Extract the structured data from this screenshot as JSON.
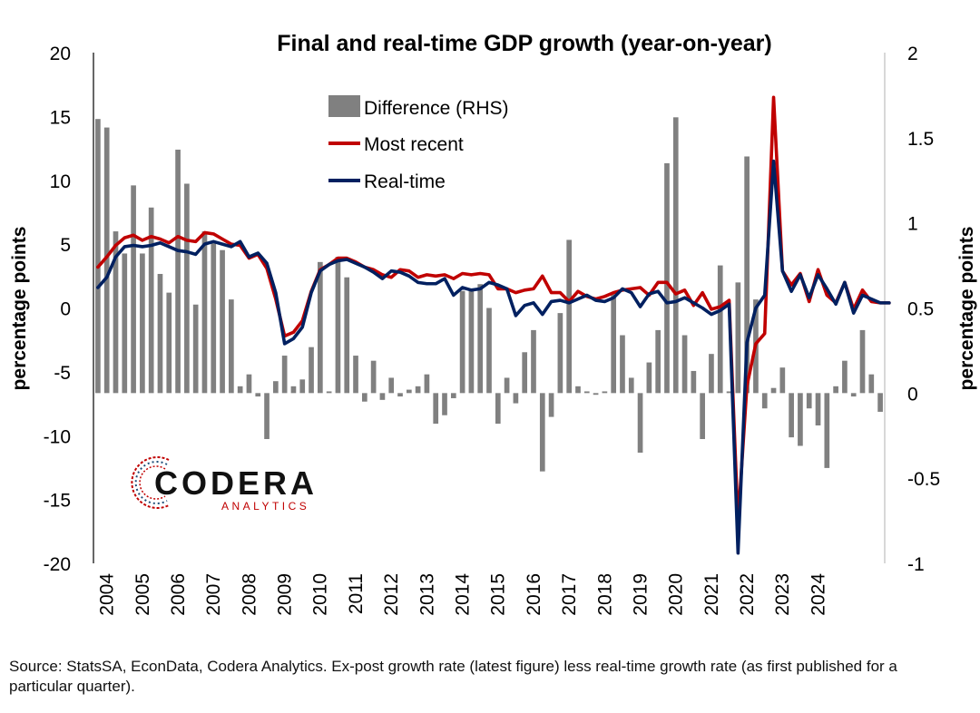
{
  "chart_data": {
    "type": "bar",
    "title": "Final and real-time GDP growth (year-on-year)",
    "ylabel_left": "percentage points",
    "ylabel_right": "percentage points",
    "ylim_left": [
      -20,
      20
    ],
    "ylim_right": [
      -1,
      2
    ],
    "yticks_left": [
      "20",
      "15",
      "10",
      "5",
      "0",
      "-5",
      "-10",
      "-15",
      "-20"
    ],
    "yticks_right": [
      "2",
      "1.5",
      "1",
      "0.5",
      "0",
      "-0.5",
      "-1"
    ],
    "x_labels": [
      "2004",
      "2005",
      "2006",
      "2007",
      "2008",
      "2009",
      "2010",
      "2011",
      "2012",
      "2013",
      "2014",
      "2015",
      "2016",
      "2017",
      "2018",
      "2019",
      "2020",
      "2021",
      "2022",
      "2023",
      "2024"
    ],
    "x_start_year": 2004,
    "legend_position": "top-left",
    "grid": false,
    "series": [
      {
        "name": "Difference (RHS)",
        "kind": "bar",
        "axis": "right",
        "color": "#808080",
        "values": [
          1.61,
          1.56,
          0.95,
          0.82,
          1.22,
          0.82,
          1.09,
          0.7,
          0.59,
          1.43,
          1.23,
          0.52,
          0.95,
          0.88,
          0.84,
          0.55,
          0.04,
          0.11,
          -0.02,
          -0.27,
          0.07,
          0.22,
          0.04,
          0.08,
          0.27,
          0.77,
          0.01,
          0.8,
          0.68,
          0.22,
          -0.05,
          0.19,
          -0.04,
          0.09,
          -0.02,
          0.02,
          0.04,
          0.11,
          -0.18,
          -0.13,
          -0.03,
          0.6,
          0.6,
          0.64,
          0.5,
          -0.18,
          0.09,
          -0.06,
          0.24,
          0.37,
          -0.46,
          -0.14,
          0.47,
          0.9,
          0.04,
          0.01,
          -0.01,
          0.01,
          0.58,
          0.34,
          0.09,
          -0.35,
          0.18,
          0.37,
          1.35,
          1.62,
          0.34,
          0.13,
          -0.27,
          0.23,
          0.75,
          0.01,
          0.65,
          1.39,
          0.55,
          -0.09,
          0.03,
          0.15,
          -0.26,
          -0.31,
          -0.09,
          -0.19,
          -0.44,
          0.04,
          0.19,
          -0.02,
          0.37,
          0.11,
          -0.11
        ]
      },
      {
        "name": "Most recent",
        "kind": "line",
        "axis": "left",
        "color": "#c00000",
        "values": [
          3.2,
          4.0,
          4.9,
          5.5,
          5.7,
          5.3,
          5.6,
          5.4,
          5.1,
          5.6,
          5.3,
          5.2,
          5.9,
          5.8,
          5.4,
          5.0,
          4.9,
          3.9,
          4.2,
          3.1,
          0.7,
          -2.2,
          -1.9,
          -1.0,
          1.3,
          3.0,
          3.4,
          3.9,
          3.9,
          3.6,
          3.2,
          3.0,
          2.6,
          2.4,
          3.0,
          2.9,
          2.4,
          2.6,
          2.5,
          2.6,
          2.3,
          2.7,
          2.6,
          2.7,
          2.6,
          1.5,
          1.5,
          1.2,
          1.4,
          1.5,
          2.5,
          1.2,
          1.2,
          0.5,
          1.3,
          0.9,
          0.7,
          0.9,
          1.2,
          1.4,
          1.5,
          1.6,
          1.0,
          2.0,
          2.0,
          1.1,
          1.4,
          0.2,
          1.2,
          -0.1,
          0.1,
          0.6,
          -16.8,
          -6.1,
          -2.8,
          -2.0,
          16.5,
          2.9,
          1.8,
          2.7,
          0.5,
          3.0,
          1.0,
          0.4,
          2.0,
          -0.1,
          1.4,
          0.5,
          0.4,
          0.4
        ]
      },
      {
        "name": "Real-time",
        "kind": "line",
        "axis": "left",
        "color": "#002060",
        "values": [
          1.6,
          2.4,
          4.0,
          4.8,
          4.9,
          4.8,
          4.9,
          5.1,
          4.8,
          4.5,
          4.4,
          4.2,
          5.0,
          5.2,
          5.0,
          4.8,
          5.2,
          4.0,
          4.3,
          3.5,
          1.2,
          -2.8,
          -2.4,
          -1.5,
          1.2,
          2.9,
          3.4,
          3.7,
          3.8,
          3.5,
          3.2,
          2.8,
          2.3,
          2.9,
          2.8,
          2.5,
          2.0,
          1.9,
          1.9,
          2.3,
          1.0,
          1.6,
          1.4,
          1.5,
          2.0,
          1.8,
          1.5,
          -0.6,
          0.2,
          0.4,
          -0.5,
          0.5,
          0.6,
          0.4,
          0.7,
          1.0,
          0.6,
          0.5,
          0.8,
          1.5,
          1.2,
          0.1,
          1.1,
          1.3,
          0.4,
          0.5,
          0.8,
          0.4,
          0.0,
          -0.5,
          -0.2,
          0.3,
          -19.2,
          -2.7,
          0.0,
          1.0,
          11.5,
          2.9,
          1.3,
          2.6,
          0.8,
          2.6,
          1.5,
          0.3,
          2.0,
          -0.4,
          1.0,
          0.7,
          0.4,
          0.4
        ]
      }
    ],
    "logo": {
      "name": "CODERA",
      "subtitle": "ANALYTICS"
    },
    "footnote": "Source: StatsSA, EconData, Codera Analytics. Ex-post growth rate (latest figure) less real-time growth rate (as first published for a particular quarter)."
  }
}
